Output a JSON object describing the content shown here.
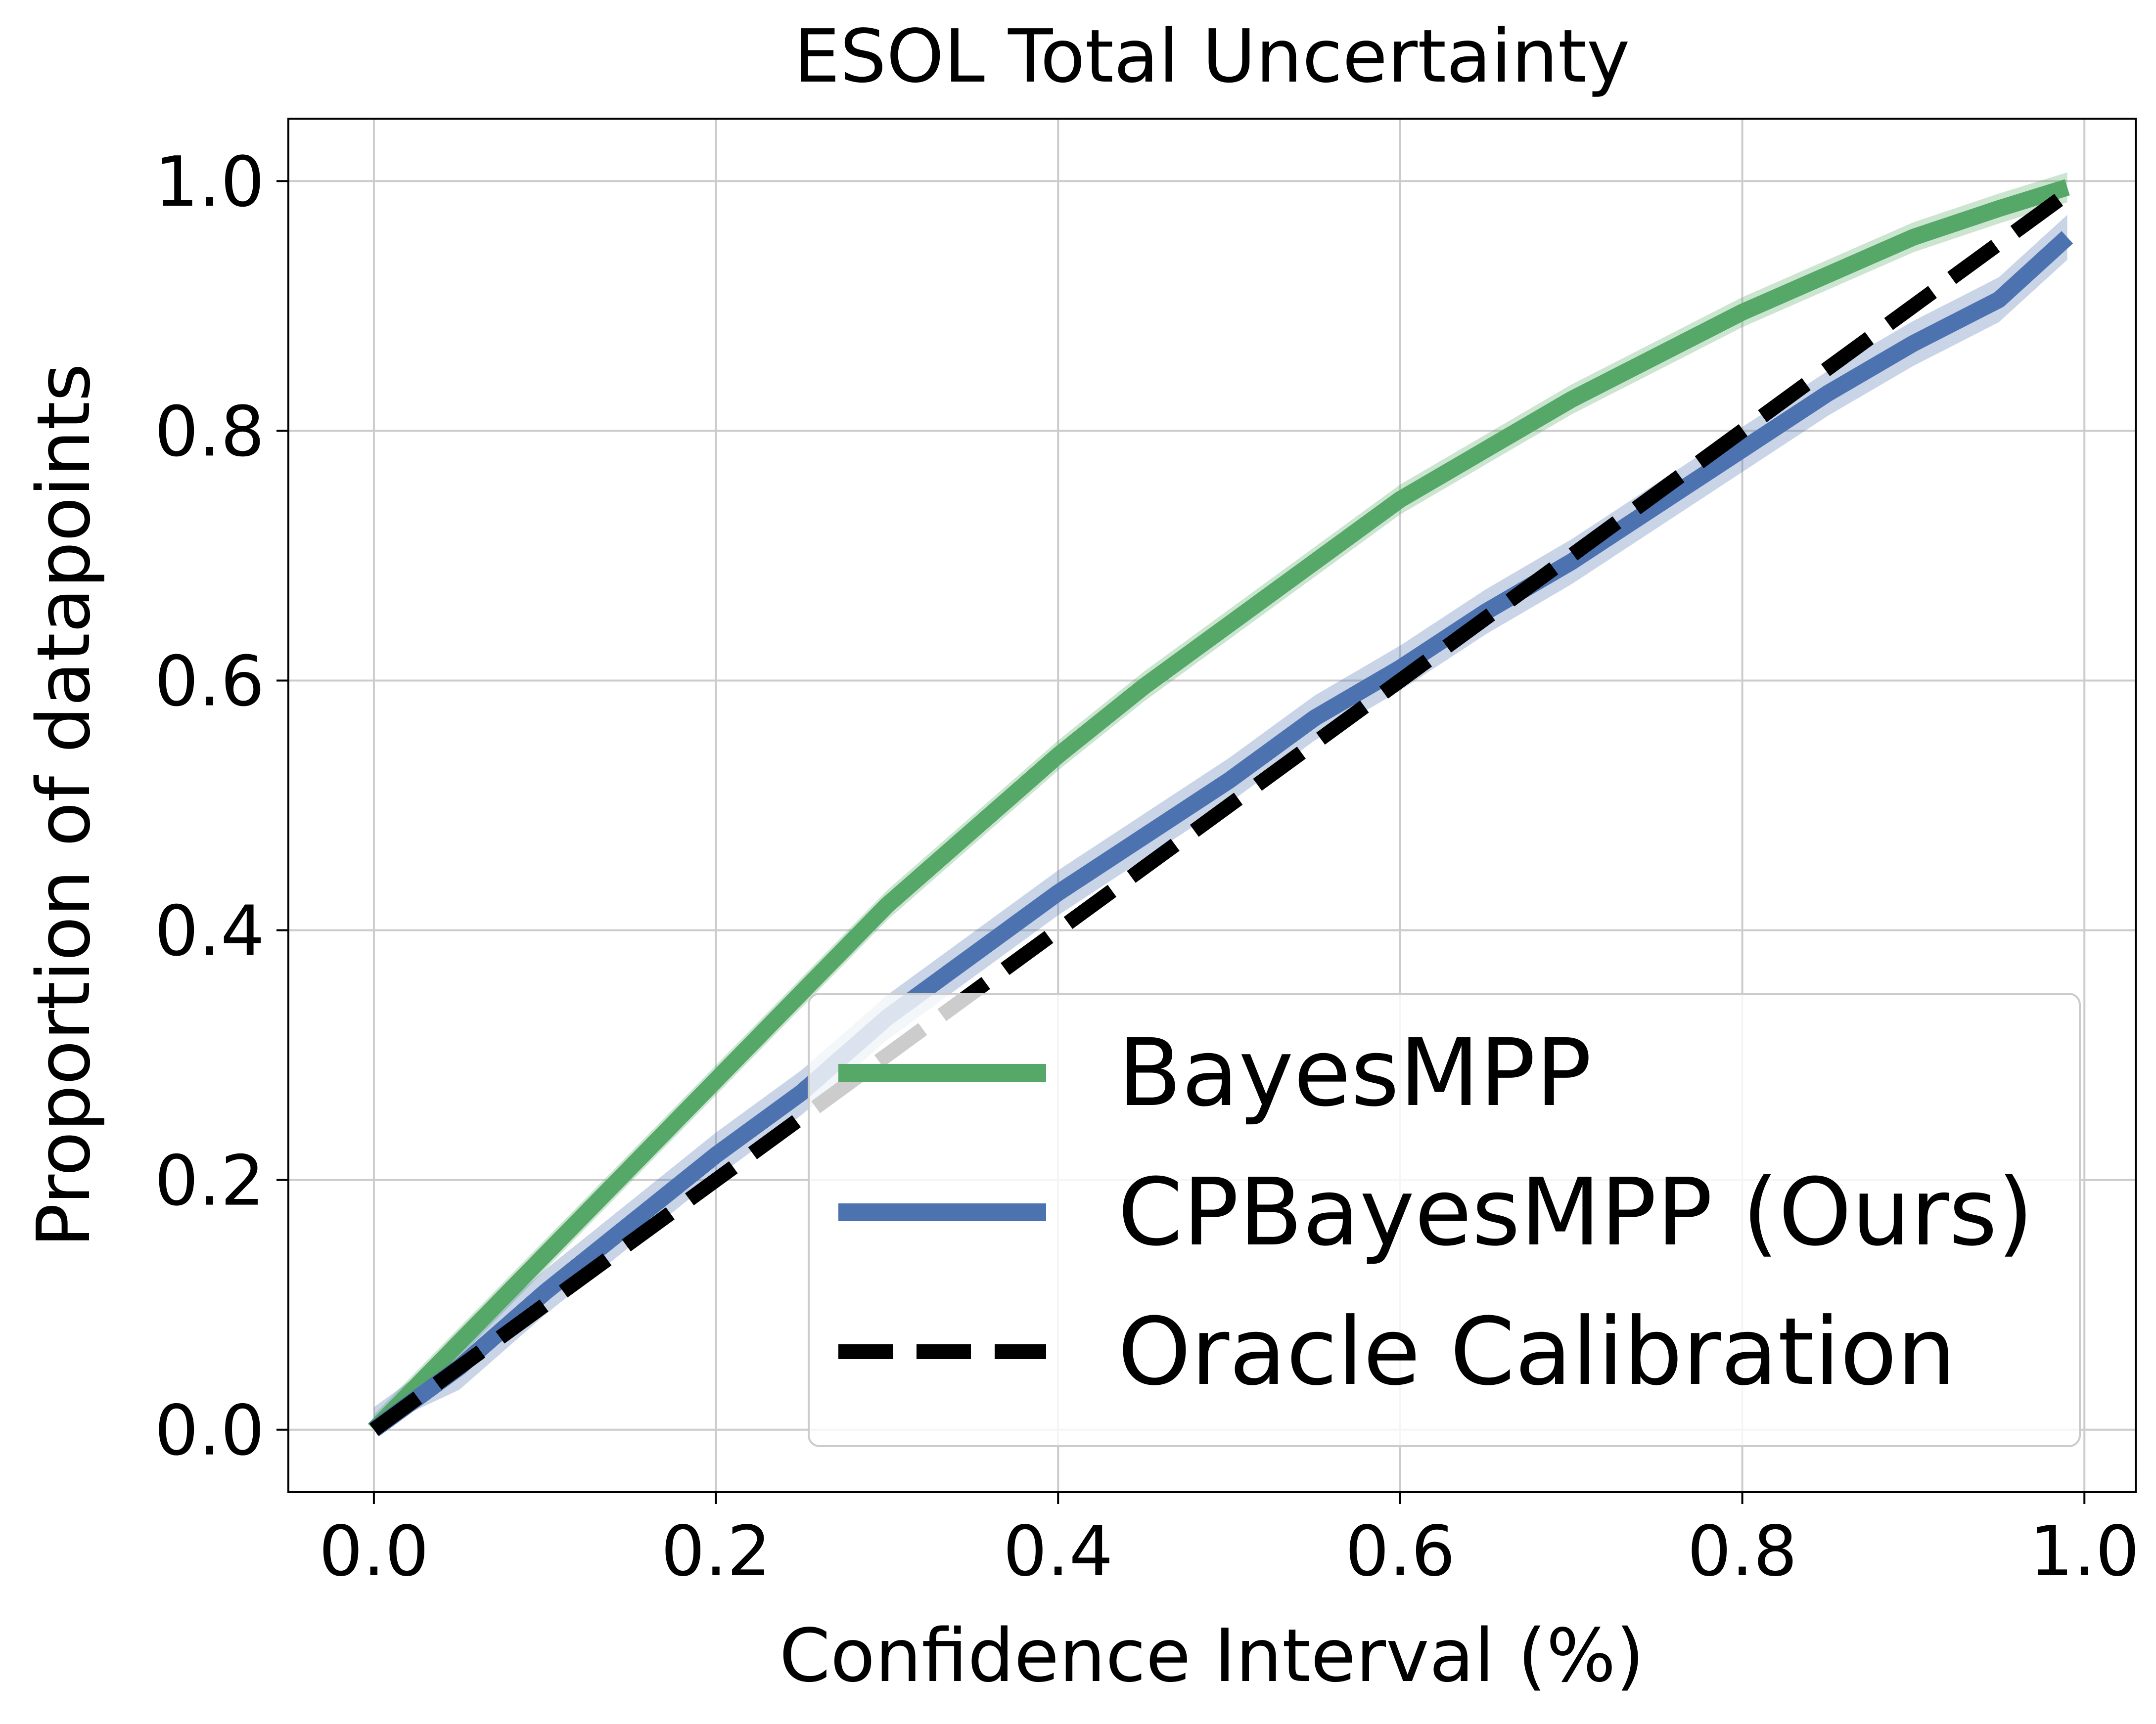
{
  "chart_data": {
    "type": "line",
    "title": "ESOL Total Uncertainty",
    "xlabel": "Confidence Interval (%)",
    "ylabel": "Proportion of datapoints",
    "xlim": [
      -0.05,
      1.03
    ],
    "ylim": [
      -0.05,
      1.05
    ],
    "xticks": [
      "0.0",
      "0.2",
      "0.4",
      "0.6",
      "0.8",
      "1.0"
    ],
    "yticks": [
      "0.0",
      "0.2",
      "0.4",
      "0.6",
      "0.8",
      "1.0"
    ],
    "grid": true,
    "legend_position": "lower-right",
    "x": [
      0.0,
      0.05,
      0.1,
      0.15,
      0.2,
      0.25,
      0.3,
      0.35,
      0.4,
      0.45,
      0.5,
      0.55,
      0.6,
      0.65,
      0.7,
      0.75,
      0.8,
      0.85,
      0.9,
      0.95,
      0.99
    ],
    "series": [
      {
        "name": "BayesMPP",
        "color": "#55a868",
        "values": [
          0.0,
          0.07,
          0.14,
          0.21,
          0.28,
          0.35,
          0.42,
          0.48,
          0.54,
          0.595,
          0.645,
          0.695,
          0.745,
          0.785,
          0.825,
          0.86,
          0.895,
          0.925,
          0.955,
          0.978,
          0.995
        ],
        "band": 0.012
      },
      {
        "name": "CPBayesMPP (Ours)",
        "color": "#4c72b0",
        "values": [
          0.0,
          0.05,
          0.11,
          0.165,
          0.22,
          0.27,
          0.33,
          0.38,
          0.43,
          0.475,
          0.52,
          0.57,
          0.61,
          0.655,
          0.695,
          0.74,
          0.785,
          0.83,
          0.87,
          0.905,
          0.955
        ],
        "band": 0.018
      },
      {
        "name": "Oracle Calibration",
        "color": "#000000",
        "dashed": true,
        "values": [
          0.0,
          0.05,
          0.1,
          0.15,
          0.2,
          0.25,
          0.3,
          0.35,
          0.4,
          0.45,
          0.5,
          0.55,
          0.6,
          0.65,
          0.7,
          0.75,
          0.8,
          0.85,
          0.9,
          0.95,
          0.99
        ]
      }
    ]
  }
}
